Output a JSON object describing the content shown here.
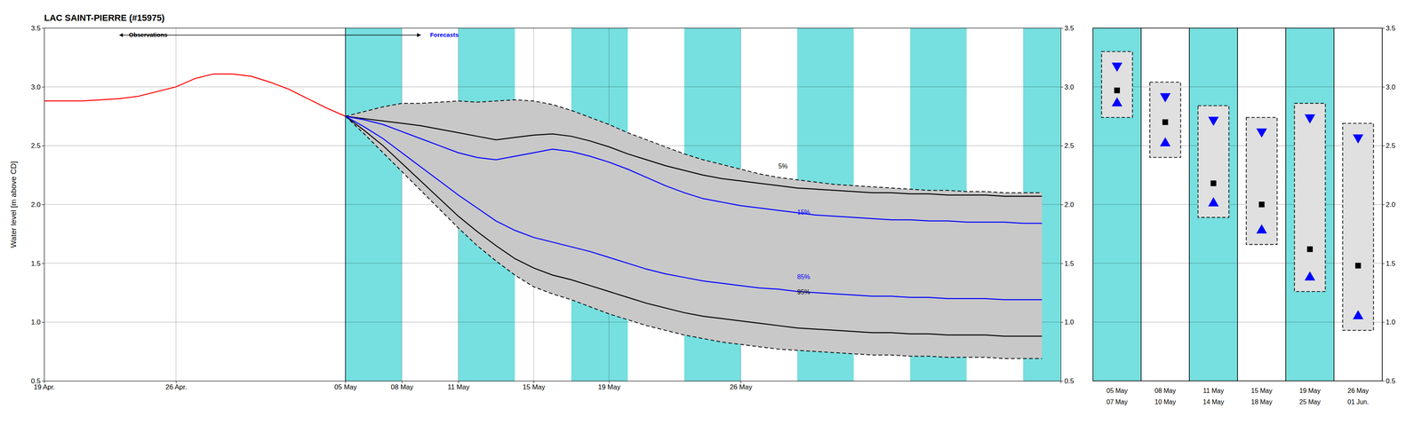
{
  "chart_data": [
    {
      "type": "line",
      "title": "LAC SAINT-PIERRE (#15975)",
      "y_label": "Water level [m above CD]",
      "xlim": [
        0,
        54
      ],
      "xticks": [
        {
          "value": 0,
          "label": "19 Apr."
        },
        {
          "value": 7,
          "label": "26 Apr."
        },
        {
          "value": 16,
          "label": "05 May"
        },
        {
          "value": 19,
          "label": "08 May"
        },
        {
          "value": 22,
          "label": "11 May"
        },
        {
          "value": 26,
          "label": "15 May"
        },
        {
          "value": 30,
          "label": "19 May"
        },
        {
          "value": 37,
          "label": "26 May"
        }
      ],
      "ylim": [
        0.5,
        3.5
      ],
      "yticks": [
        0.5,
        {
          "value": 1,
          "label": "1.0"
        },
        1.5,
        {
          "value": 2,
          "label": "2.0"
        },
        2.5,
        {
          "value": 3,
          "label": "3.0"
        },
        3.5
      ],
      "grid": true,
      "bands": {
        "color": "#76DFDF",
        "ranges": [
          [
            16,
            19
          ],
          [
            22,
            25
          ],
          [
            28,
            31
          ],
          [
            34,
            37
          ],
          [
            40,
            43
          ],
          [
            46,
            49
          ],
          [
            52,
            54
          ]
        ]
      },
      "vlines": [
        16
      ],
      "series": [
        {
          "type": "area",
          "color": "#C8C8C8",
          "x": [
            16,
            17,
            18,
            19,
            20,
            21,
            22,
            23,
            24,
            25,
            26,
            27,
            28,
            29,
            30,
            31,
            32,
            33,
            34,
            35,
            36,
            37,
            38,
            39,
            40,
            41,
            42,
            43,
            44,
            45,
            46,
            47,
            48,
            49,
            50,
            51,
            52,
            53
          ],
          "values": [
            2.75,
            2.79,
            2.83,
            2.86,
            2.86,
            2.87,
            2.88,
            2.87,
            2.88,
            2.89,
            2.88,
            2.85,
            2.8,
            2.74,
            2.68,
            2.61,
            2.55,
            2.49,
            2.43,
            2.38,
            2.34,
            2.3,
            2.26,
            2.23,
            2.21,
            2.19,
            2.17,
            2.16,
            2.15,
            2.14,
            2.13,
            2.12,
            2.12,
            2.11,
            2.11,
            2.1,
            2.1,
            2.1
          ],
          "lower": [
            2.75,
            2.6,
            2.44,
            2.28,
            2.12,
            1.96,
            1.8,
            1.65,
            1.52,
            1.4,
            1.3,
            1.24,
            1.19,
            1.13,
            1.07,
            1.02,
            0.97,
            0.93,
            0.89,
            0.86,
            0.83,
            0.81,
            0.79,
            0.77,
            0.76,
            0.75,
            0.74,
            0.73,
            0.72,
            0.72,
            0.71,
            0.71,
            0.7,
            0.7,
            0.7,
            0.69,
            0.69,
            0.69
          ]
        },
        {
          "type": "line",
          "color": "#000000",
          "line_style": "dashed",
          "x": [
            16,
            17,
            18,
            19,
            20,
            21,
            22,
            23,
            24,
            25,
            26,
            27,
            28,
            29,
            30,
            31,
            32,
            33,
            34,
            35,
            36,
            37,
            38,
            39,
            40,
            41,
            42,
            43,
            44,
            45,
            46,
            47,
            48,
            49,
            50,
            51,
            52,
            53
          ],
          "values": [
            2.75,
            2.79,
            2.83,
            2.86,
            2.86,
            2.87,
            2.88,
            2.87,
            2.88,
            2.89,
            2.88,
            2.85,
            2.8,
            2.74,
            2.68,
            2.61,
            2.55,
            2.49,
            2.43,
            2.38,
            2.34,
            2.3,
            2.26,
            2.23,
            2.21,
            2.19,
            2.17,
            2.16,
            2.15,
            2.14,
            2.13,
            2.12,
            2.12,
            2.11,
            2.11,
            2.1,
            2.1,
            2.1
          ]
        },
        {
          "type": "line",
          "color": "#000000",
          "line_style": "dashed",
          "x": [
            16,
            17,
            18,
            19,
            20,
            21,
            22,
            23,
            24,
            25,
            26,
            27,
            28,
            29,
            30,
            31,
            32,
            33,
            34,
            35,
            36,
            37,
            38,
            39,
            40,
            41,
            42,
            43,
            44,
            45,
            46,
            47,
            48,
            49,
            50,
            51,
            52,
            53
          ],
          "values": [
            2.75,
            2.6,
            2.44,
            2.28,
            2.12,
            1.96,
            1.8,
            1.65,
            1.52,
            1.4,
            1.3,
            1.24,
            1.19,
            1.13,
            1.07,
            1.02,
            0.97,
            0.93,
            0.89,
            0.86,
            0.83,
            0.81,
            0.79,
            0.77,
            0.76,
            0.75,
            0.74,
            0.73,
            0.72,
            0.72,
            0.71,
            0.71,
            0.7,
            0.7,
            0.7,
            0.69,
            0.69,
            0.69
          ]
        },
        {
          "type": "line",
          "color": "#000000",
          "line_style": "solid",
          "x": [
            16,
            17,
            18,
            19,
            20,
            21,
            22,
            23,
            24,
            25,
            26,
            27,
            28,
            29,
            30,
            31,
            32,
            33,
            34,
            35,
            36,
            37,
            38,
            39,
            40,
            41,
            42,
            43,
            44,
            45,
            46,
            47,
            48,
            49,
            50,
            51,
            52,
            53
          ],
          "values": [
            2.75,
            2.73,
            2.71,
            2.69,
            2.67,
            2.64,
            2.61,
            2.58,
            2.55,
            2.57,
            2.59,
            2.6,
            2.58,
            2.54,
            2.49,
            2.43,
            2.38,
            2.33,
            2.29,
            2.25,
            2.22,
            2.2,
            2.18,
            2.16,
            2.14,
            2.13,
            2.12,
            2.11,
            2.1,
            2.1,
            2.09,
            2.09,
            2.08,
            2.08,
            2.08,
            2.07,
            2.07,
            2.07
          ]
        },
        {
          "type": "line",
          "color": "#000000",
          "line_style": "solid",
          "x": [
            16,
            17,
            18,
            19,
            20,
            21,
            22,
            23,
            24,
            25,
            26,
            27,
            28,
            29,
            30,
            31,
            32,
            33,
            34,
            35,
            36,
            37,
            38,
            39,
            40,
            41,
            42,
            43,
            44,
            45,
            46,
            47,
            48,
            49,
            50,
            51,
            52,
            53
          ],
          "values": [
            2.75,
            2.63,
            2.5,
            2.35,
            2.2,
            2.05,
            1.9,
            1.77,
            1.65,
            1.54,
            1.46,
            1.4,
            1.36,
            1.31,
            1.26,
            1.21,
            1.16,
            1.12,
            1.08,
            1.05,
            1.03,
            1.01,
            0.99,
            0.97,
            0.95,
            0.94,
            0.93,
            0.92,
            0.91,
            0.91,
            0.9,
            0.9,
            0.89,
            0.89,
            0.89,
            0.88,
            0.88,
            0.88
          ]
        },
        {
          "type": "line",
          "color": "#0000FF",
          "line_style": "solid",
          "x": [
            16,
            17,
            18,
            19,
            20,
            21,
            22,
            23,
            24,
            25,
            26,
            27,
            28,
            29,
            30,
            31,
            32,
            33,
            34,
            35,
            36,
            37,
            38,
            39,
            40,
            41,
            42,
            43,
            44,
            45,
            46,
            47,
            48,
            49,
            50,
            51,
            52,
            53
          ],
          "values": [
            2.75,
            2.72,
            2.68,
            2.62,
            2.56,
            2.5,
            2.44,
            2.4,
            2.38,
            2.41,
            2.44,
            2.47,
            2.45,
            2.41,
            2.36,
            2.3,
            2.23,
            2.16,
            2.1,
            2.05,
            2.02,
            1.99,
            1.97,
            1.95,
            1.93,
            1.91,
            1.9,
            1.89,
            1.88,
            1.87,
            1.87,
            1.86,
            1.86,
            1.85,
            1.85,
            1.85,
            1.84,
            1.84
          ]
        },
        {
          "type": "line",
          "color": "#0000FF",
          "line_style": "solid",
          "x": [
            16,
            17,
            18,
            19,
            20,
            21,
            22,
            23,
            24,
            25,
            26,
            27,
            28,
            29,
            30,
            31,
            32,
            33,
            34,
            35,
            36,
            37,
            38,
            39,
            40,
            41,
            42,
            43,
            44,
            45,
            46,
            47,
            48,
            49,
            50,
            51,
            52,
            53
          ],
          "values": [
            2.75,
            2.66,
            2.56,
            2.44,
            2.32,
            2.2,
            2.08,
            1.97,
            1.86,
            1.78,
            1.72,
            1.68,
            1.64,
            1.6,
            1.55,
            1.5,
            1.45,
            1.41,
            1.38,
            1.35,
            1.33,
            1.31,
            1.29,
            1.28,
            1.26,
            1.25,
            1.24,
            1.23,
            1.22,
            1.22,
            1.21,
            1.21,
            1.2,
            1.2,
            1.2,
            1.19,
            1.19,
            1.19
          ]
        },
        {
          "type": "line",
          "color": "#FF0000",
          "line_style": "solid",
          "x": [
            0,
            1,
            2,
            3,
            4,
            5,
            6,
            7,
            8,
            9,
            10,
            11,
            12,
            13,
            14,
            15,
            16
          ],
          "values": [
            2.88,
            2.88,
            2.88,
            2.89,
            2.9,
            2.92,
            2.96,
            3.0,
            3.07,
            3.11,
            3.11,
            3.09,
            3.04,
            2.98,
            2.9,
            2.82,
            2.75
          ]
        }
      ],
      "annotations": [
        {
          "text": "5%",
          "x": 39,
          "y": 2.32,
          "color": "#000000"
        },
        {
          "text": "15%",
          "x": 40,
          "y": 1.93,
          "color": "#0000FF"
        },
        {
          "text": "85%",
          "x": 40,
          "y": 1.38,
          "color": "#0000FF"
        },
        {
          "text": "95%",
          "x": 40,
          "y": 1.25,
          "color": "#000000"
        },
        {
          "text": "Observations",
          "x": 4.5,
          "y": 3.44,
          "color": "#000000",
          "arrow_x": [
            16,
            4
          ]
        },
        {
          "text": "Forecasts",
          "x": 20.5,
          "y": 3.44,
          "color": "#0000FF",
          "arrow_x": [
            16,
            20
          ]
        }
      ]
    },
    {
      "type": "range",
      "categories": [
        [
          "05 May",
          "07 May"
        ],
        [
          "08 May",
          "10 May"
        ],
        [
          "11 May",
          "14 May"
        ],
        [
          "15 May",
          "18 May"
        ],
        [
          "19 May",
          "25 May"
        ],
        [
          "26 May",
          "01 Jun."
        ]
      ],
      "ylim": [
        0.5,
        3.5
      ],
      "yticks": [
        0.5,
        {
          "value": 1,
          "label": "1.0"
        },
        1.5,
        {
          "value": 2,
          "label": "2.0"
        },
        2.5,
        {
          "value": 3,
          "label": "3.0"
        },
        3.5
      ],
      "grid": true,
      "colors": [
        "#76DFDF",
        "#ffffff",
        "#76DFDF",
        "#ffffff",
        "#76DFDF",
        "#ffffff"
      ],
      "series": [
        {
          "type": "box",
          "color": "#e0e0e0",
          "line_style": "dashed",
          "low": [
            2.74,
            2.4,
            1.89,
            1.66,
            1.26,
            0.93
          ],
          "high": [
            3.3,
            3.04,
            2.84,
            2.74,
            2.86,
            2.69
          ]
        },
        {
          "type": "point",
          "color": "#0000FF",
          "marker": "triangle-down",
          "values": [
            3.18,
            2.92,
            2.72,
            2.62,
            2.74,
            2.57
          ]
        },
        {
          "type": "point",
          "color": "#000000",
          "marker": "square",
          "values": [
            2.97,
            2.7,
            2.18,
            2.0,
            1.62,
            1.48
          ]
        },
        {
          "type": "point",
          "color": "#0000FF",
          "marker": "triangle-up",
          "values": [
            2.86,
            2.52,
            2.01,
            1.78,
            1.38,
            1.05
          ]
        }
      ]
    }
  ]
}
